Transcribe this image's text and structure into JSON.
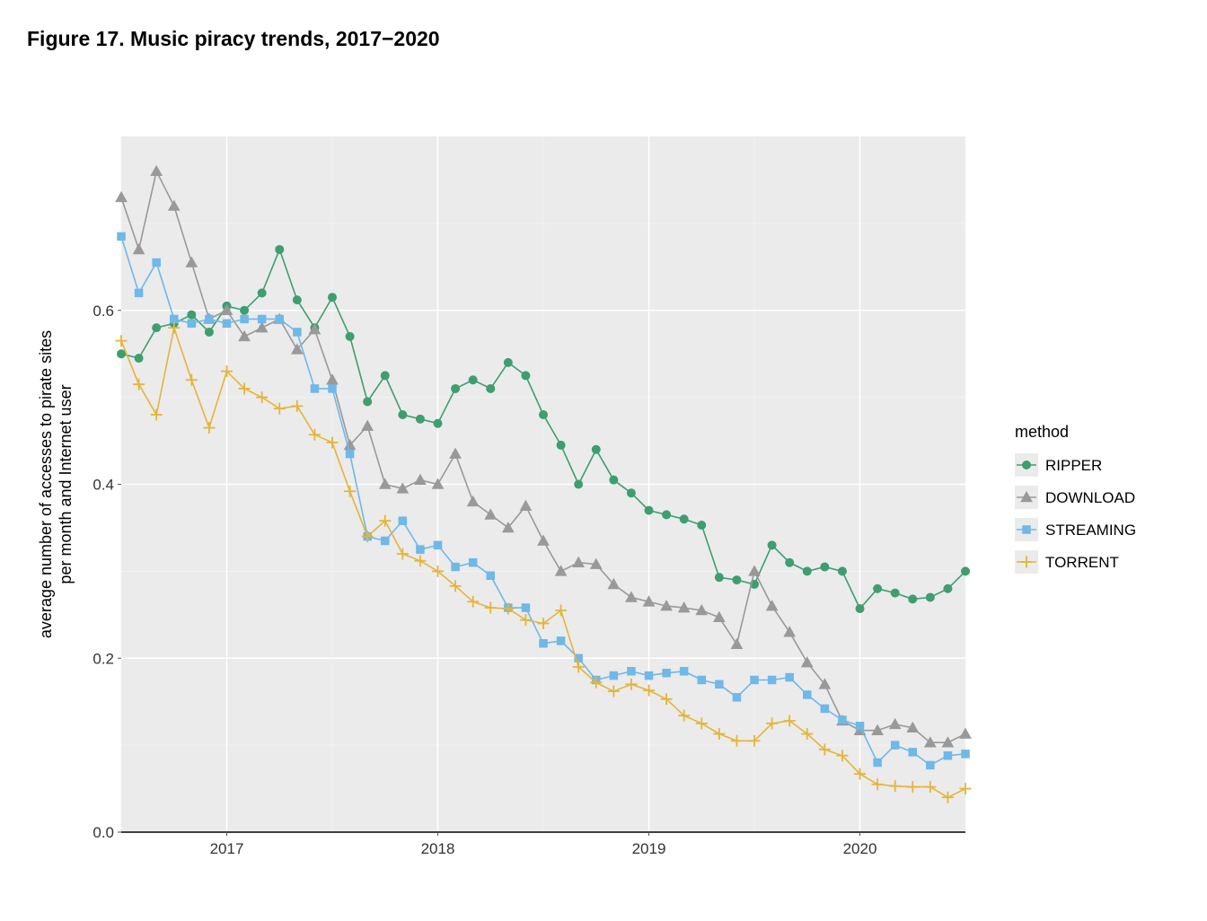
{
  "title": "Figure 17. Music piracy trends, 2017−2020",
  "chart": {
    "type": "line",
    "background_color": "#ffffff",
    "panel_color": "#ebebeb",
    "grid_major_color": "#ffffff",
    "grid_minor_color": "#f4f4f4",
    "axis_text_color": "#333333",
    "y_label_line1": "average number of accesses to pirate sites",
    "y_label_line2": "per month and Internet user",
    "y_label_fontsize": 18,
    "ylim": [
      0.0,
      0.8
    ],
    "y_ticks": [
      0.0,
      0.2,
      0.4,
      0.6
    ],
    "y_tick_labels": [
      "0.0",
      "0.2",
      "0.4",
      "0.6"
    ],
    "xlim": [
      0,
      48
    ],
    "x_ticks": [
      6,
      18,
      30,
      42
    ],
    "x_tick_labels": [
      "2017",
      "2018",
      "2019",
      "2020"
    ],
    "x_minor_ticks": [
      0,
      12,
      24,
      36,
      48
    ],
    "y_minor_ticks": [
      0.1,
      0.3,
      0.5,
      0.7
    ],
    "zero_line_color": "#000000",
    "zero_line_width": 1.4,
    "line_width": 1.6,
    "marker_size": 5,
    "legend": {
      "title": "method",
      "title_fontsize": 18,
      "item_fontsize": 17,
      "key_bg": "#ebebeb",
      "items": [
        {
          "label": "RIPPER",
          "color": "#3e9e6f",
          "marker": "circle"
        },
        {
          "label": "DOWNLOAD",
          "color": "#999999",
          "marker": "triangle"
        },
        {
          "label": "STREAMING",
          "color": "#6fb8e8",
          "marker": "square"
        },
        {
          "label": "TORRENT",
          "color": "#e5b53a",
          "marker": "plus"
        }
      ]
    },
    "series": [
      {
        "name": "RIPPER",
        "color": "#3e9e6f",
        "marker": "circle",
        "y": [
          0.55,
          0.545,
          0.58,
          0.585,
          0.595,
          0.575,
          0.605,
          0.6,
          0.62,
          0.67,
          0.612,
          0.58,
          0.615,
          0.57,
          0.495,
          0.525,
          0.48,
          0.475,
          0.47,
          0.51,
          0.52,
          0.51,
          0.54,
          0.525,
          0.48,
          0.445,
          0.4,
          0.44,
          0.405,
          0.39,
          0.37,
          0.365,
          0.36,
          0.353,
          0.293,
          0.29,
          0.285,
          0.33,
          0.31,
          0.3,
          0.305,
          0.3,
          0.257,
          0.28,
          0.275,
          0.268,
          0.27,
          0.28,
          0.3
        ]
      },
      {
        "name": "DOWNLOAD",
        "color": "#999999",
        "marker": "triangle",
        "y": [
          0.73,
          0.67,
          0.76,
          0.72,
          0.655,
          0.59,
          0.6,
          0.57,
          0.58,
          0.59,
          0.555,
          0.578,
          0.52,
          0.445,
          0.467,
          0.4,
          0.395,
          0.405,
          0.4,
          0.435,
          0.38,
          0.365,
          0.35,
          0.375,
          0.335,
          0.3,
          0.31,
          0.308,
          0.285,
          0.27,
          0.265,
          0.26,
          0.258,
          0.255,
          0.247,
          0.216,
          0.3,
          0.26,
          0.23,
          0.195,
          0.17,
          0.128,
          0.117,
          0.117,
          0.124,
          0.12,
          0.103,
          0.103,
          0.113
        ]
      },
      {
        "name": "STREAMING",
        "color": "#6fb8e8",
        "marker": "square",
        "y": [
          0.685,
          0.62,
          0.655,
          0.59,
          0.585,
          0.59,
          0.585,
          0.59,
          0.59,
          0.59,
          0.575,
          0.51,
          0.51,
          0.435,
          0.34,
          0.335,
          0.358,
          0.325,
          0.33,
          0.305,
          0.31,
          0.295,
          0.258,
          0.258,
          0.217,
          0.22,
          0.2,
          0.175,
          0.18,
          0.185,
          0.18,
          0.183,
          0.185,
          0.175,
          0.17,
          0.155,
          0.175,
          0.175,
          0.178,
          0.158,
          0.142,
          0.129,
          0.122,
          0.08,
          0.1,
          0.092,
          0.077,
          0.088,
          0.09
        ]
      },
      {
        "name": "TORRENT",
        "color": "#e5b53a",
        "marker": "plus",
        "y": [
          0.565,
          0.515,
          0.48,
          0.58,
          0.52,
          0.465,
          0.53,
          0.51,
          0.5,
          0.487,
          0.49,
          0.457,
          0.448,
          0.392,
          0.34,
          0.358,
          0.32,
          0.312,
          0.3,
          0.283,
          0.265,
          0.258,
          0.257,
          0.244,
          0.24,
          0.255,
          0.19,
          0.172,
          0.162,
          0.17,
          0.163,
          0.153,
          0.134,
          0.125,
          0.113,
          0.105,
          0.105,
          0.125,
          0.128,
          0.113,
          0.095,
          0.088,
          0.067,
          0.055,
          0.053,
          0.052,
          0.052,
          0.04,
          0.05
        ]
      }
    ]
  }
}
